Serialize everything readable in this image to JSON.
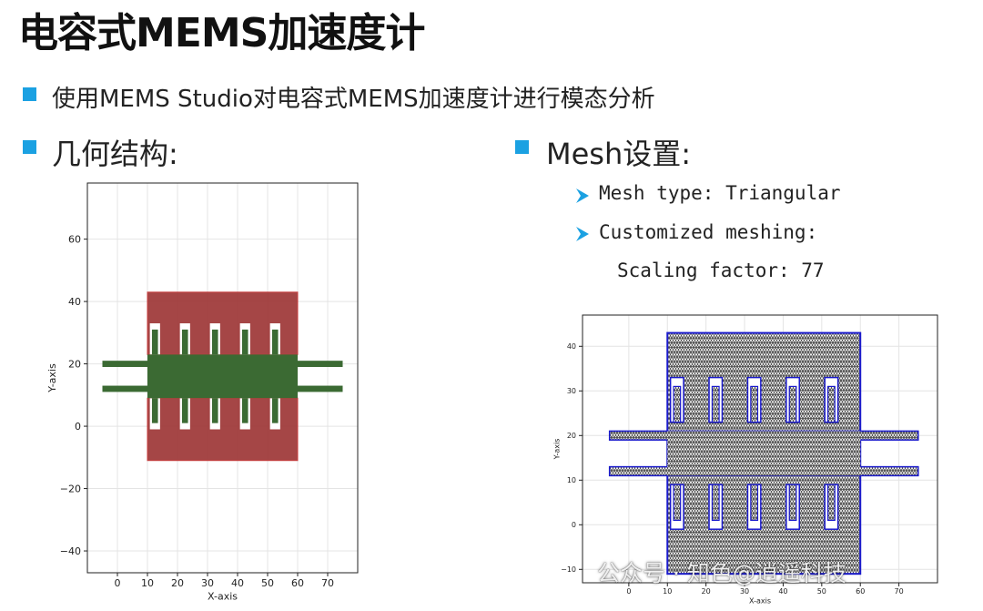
{
  "slide": {
    "title": "电容式MEMS加速度计",
    "bullet1": "使用MEMS Studio对电容式MEMS加速度计进行模态分析",
    "geometry_heading": "几何结构:",
    "mesh_heading": "Mesh设置:",
    "mesh_type": "Mesh type: Triangular",
    "custom_meshing": "Customized meshing:",
    "scaling": "Scaling factor: 77",
    "watermark": "公众号 · 知色@逍遥科技",
    "bullet_color": "#1ba1e2"
  },
  "chart_data": [
    {
      "type": "geometry-plot",
      "xlabel": "X-axis",
      "ylabel": "Y-axis",
      "xlim": [
        -10,
        80
      ],
      "ylim": [
        -47,
        78
      ],
      "xticks": [
        0,
        10,
        20,
        30,
        40,
        50,
        60,
        70
      ],
      "yticks": [
        -40,
        -20,
        0,
        20,
        40,
        60
      ],
      "grid": true,
      "fill_colors": {
        "anchor": "#9b3232",
        "proof_mass": "#3b6a33"
      }
    },
    {
      "type": "mesh-plot",
      "xlabel": "X-axis",
      "ylabel": "Y-axis",
      "xlim": [
        -12,
        80
      ],
      "ylim": [
        -13,
        47
      ],
      "xticks": [
        0,
        10,
        20,
        30,
        40,
        50,
        60,
        70
      ],
      "yticks": [
        -10,
        0,
        10,
        20,
        30,
        40
      ],
      "grid": true,
      "mesh_type": "Triangular",
      "colors": {
        "outline": "#1a1acc",
        "mesh": "#3a3a3a"
      }
    }
  ]
}
